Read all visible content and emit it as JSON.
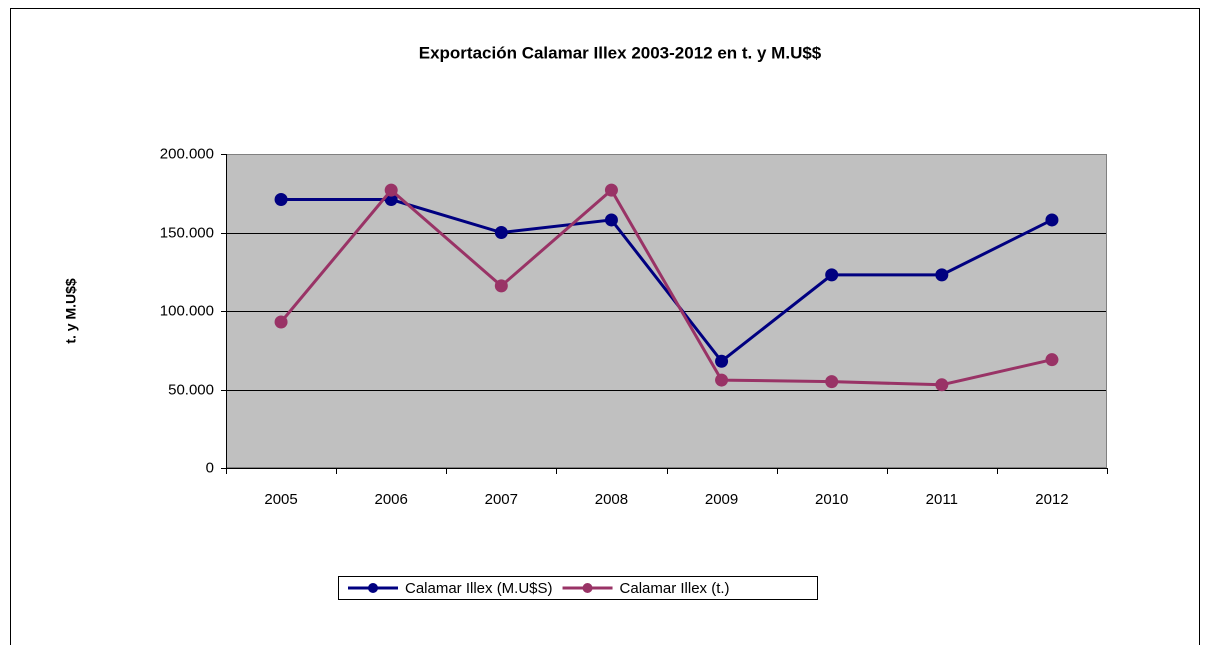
{
  "chart_data": {
    "type": "line",
    "title": "Exportación Calamar Illex 2003-2012 en t. y M.U$$",
    "y_label": "t. y M.U$$",
    "categories": [
      "2005",
      "2006",
      "2007",
      "2008",
      "2009",
      "2010",
      "2011",
      "2012"
    ],
    "series": [
      {
        "name": "Calamar Illex (M.U$S)",
        "color": "#000080",
        "values": [
          171000,
          171000,
          150000,
          158000,
          68000,
          123000,
          123000,
          158000
        ]
      },
      {
        "name": "Calamar Illex (t.)",
        "color": "#993366",
        "values": [
          93000,
          177000,
          116000,
          177000,
          56000,
          55000,
          53000,
          69000
        ]
      }
    ],
    "ylim": [
      0,
      200000
    ],
    "yticks": [
      0,
      {
        "value": 50000,
        "label": "50.000"
      },
      {
        "value": 100000,
        "label": "100.000"
      },
      {
        "value": 150000,
        "label": "150.000"
      },
      {
        "value": 200000,
        "label": "200.000"
      }
    ],
    "grid": true,
    "plot_background": "#c0c0c0",
    "legend": "bottom"
  }
}
